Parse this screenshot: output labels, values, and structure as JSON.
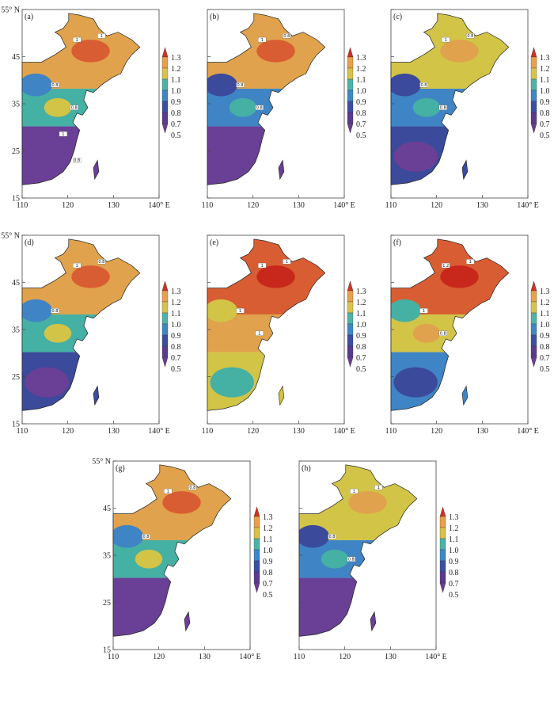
{
  "panels": [
    {
      "id": "a",
      "tag": "(a)",
      "show_lat": true,
      "contour_labels": [
        "1",
        "1",
        "0.8",
        "0.8",
        "1",
        "0.8"
      ],
      "levels": {
        "north": 1.05,
        "mid": 0.86,
        "south": 0.6
      }
    },
    {
      "id": "b",
      "tag": "(b)",
      "show_lat": false,
      "contour_labels": [
        "1",
        "0.8",
        "0.8",
        "0.8"
      ],
      "levels": {
        "north": 1.08,
        "mid": 0.8,
        "south": 0.62
      }
    },
    {
      "id": "c",
      "tag": "(c)",
      "show_lat": false,
      "contour_labels": [
        "1",
        "0.8",
        "0.8",
        "0.8"
      ],
      "levels": {
        "north": 1.02,
        "mid": 0.82,
        "south": 0.66
      }
    },
    {
      "id": "d",
      "tag": "(d)",
      "show_lat": true,
      "contour_labels": [
        "1",
        "0.8",
        "0.8"
      ],
      "levels": {
        "north": 1.05,
        "mid": 0.88,
        "south": 0.68
      }
    },
    {
      "id": "e",
      "tag": "(e)",
      "show_lat": false,
      "contour_labels": [
        "1",
        "1",
        "1",
        "1"
      ],
      "levels": {
        "north": 1.15,
        "mid": 1.05,
        "south": 0.95
      }
    },
    {
      "id": "f",
      "tag": "(f)",
      "show_lat": false,
      "contour_labels": [
        "1.2",
        "1",
        "1",
        "0.8"
      ],
      "levels": {
        "north": 1.18,
        "mid": 0.98,
        "south": 0.78
      }
    },
    {
      "id": "g",
      "tag": "(g)",
      "show_lat": true,
      "contour_labels": [
        "1",
        "0.8",
        "0.8"
      ],
      "levels": {
        "north": 1.06,
        "mid": 0.88,
        "south": 0.64
      }
    },
    {
      "id": "h",
      "tag": "(h)",
      "show_lat": false,
      "contour_labels": [
        "1",
        "1",
        "0.8",
        "0.8"
      ],
      "levels": {
        "north": 1.03,
        "mid": 0.84,
        "south": 0.62
      }
    }
  ],
  "axes": {
    "lon_ticks": [
      "110",
      "120",
      "130",
      "140° E"
    ],
    "lat_ticks": [
      "55° N",
      "45",
      "35",
      "25",
      "15"
    ]
  },
  "colorbar": {
    "labels": [
      "1.3",
      "1.2",
      "1.1",
      "1.0",
      "0.9",
      "0.8",
      "0.7",
      "0.5"
    ],
    "colors": [
      "#d7301f",
      "#e8a04a",
      "#d9c24a",
      "#4db3a8",
      "#3f86c6",
      "#3b4fa0",
      "#5a3a8f",
      "#6b3c96"
    ]
  },
  "palette": {
    "lvl_05": "#6a3f96",
    "lvl_07": "#3b4a9a",
    "lvl_08": "#3f84c4",
    "lvl_09": "#45b0a4",
    "lvl_10": "#d2c447",
    "lvl_11": "#e0a24c",
    "lvl_12": "#d95d32",
    "lvl_13": "#c8281b"
  }
}
